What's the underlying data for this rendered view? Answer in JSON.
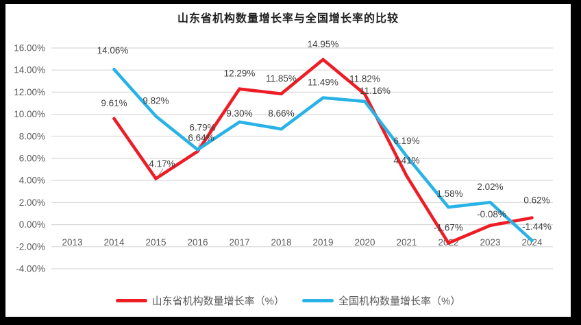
{
  "page": {
    "background_color": "#000000",
    "card_color": "#ffffff"
  },
  "chart_data": {
    "type": "line",
    "title": "山东省机构数量增长率与全国增长率的比较",
    "legend_position": "bottom",
    "grid": true,
    "colors": {
      "grid": "#d9d9d9",
      "axis_text": "#595959",
      "label_text": "#404040",
      "leader_line": "#a6a6a6"
    },
    "x_axis": {
      "tick_labels": [
        "2013",
        "2014",
        "2015",
        "2016",
        "2017",
        "2018",
        "2019",
        "2020",
        "2021",
        "2022",
        "2023",
        "2024"
      ]
    },
    "y_axis": {
      "min": -4,
      "max": 16,
      "step": 2,
      "tick_labels": [
        "16.00%",
        "14.00%",
        "12.00%",
        "10.00%",
        "8.00%",
        "6.00%",
        "4.00%",
        "2.00%",
        "0.00%",
        "-2.00%",
        "-4.00%"
      ]
    },
    "series": [
      {
        "name": "山东省机构数量增长率（%）",
        "color": "#ee1c25",
        "values": [
          null,
          9.61,
          4.17,
          6.64,
          12.29,
          11.85,
          14.95,
          11.82,
          4.41,
          -1.67,
          -0.08,
          0.62
        ],
        "labels": [
          null,
          "9.61%",
          "4.17%",
          "6.64%",
          "12.29%",
          "11.85%",
          "14.95%",
          "11.82%",
          "4.41%",
          "-1.67%",
          "-0.08%",
          "0.62%"
        ]
      },
      {
        "name": "全国机构数量增长率（%）",
        "color": "#29b2e5",
        "values": [
          null,
          14.06,
          9.82,
          6.79,
          9.3,
          8.66,
          11.49,
          11.16,
          6.19,
          1.58,
          2.02,
          -1.44
        ],
        "labels": [
          null,
          "14.06%",
          "9.82%",
          "6.79%",
          "9.30%",
          "8.66%",
          "11.49%",
          "11.16%",
          "6.19%",
          "1.58%",
          "2.02%",
          "-1.44%"
        ]
      }
    ]
  }
}
